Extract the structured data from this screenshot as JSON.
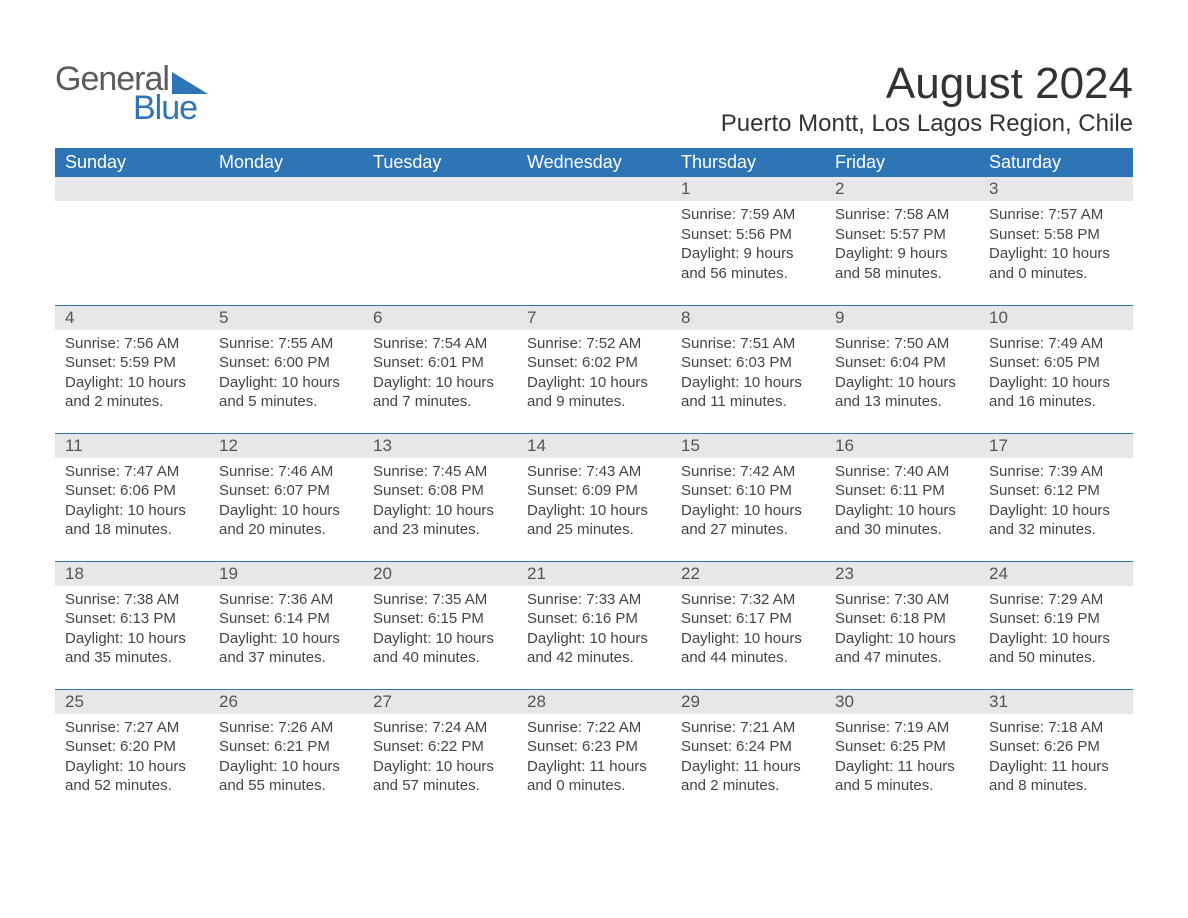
{
  "brand": {
    "word1": "General",
    "word2": "Blue",
    "tri_color": "#2e75b6"
  },
  "header": {
    "title": "August 2024",
    "location": "Puerto Montt, Los Lagos Region, Chile"
  },
  "colors": {
    "header_bg": "#2e75b6",
    "header_text": "#ffffff",
    "daynum_bg": "#e7e7e7",
    "daynum_text": "#555555",
    "body_text": "#444444",
    "rule": "#2e75b6",
    "page_bg": "#ffffff"
  },
  "weekdays": [
    "Sunday",
    "Monday",
    "Tuesday",
    "Wednesday",
    "Thursday",
    "Friday",
    "Saturday"
  ],
  "weeks": [
    [
      null,
      null,
      null,
      null,
      {
        "day": "1",
        "sunrise": "7:59 AM",
        "sunset": "5:56 PM",
        "daylight": "9 hours and 56 minutes."
      },
      {
        "day": "2",
        "sunrise": "7:58 AM",
        "sunset": "5:57 PM",
        "daylight": "9 hours and 58 minutes."
      },
      {
        "day": "3",
        "sunrise": "7:57 AM",
        "sunset": "5:58 PM",
        "daylight": "10 hours and 0 minutes."
      }
    ],
    [
      {
        "day": "4",
        "sunrise": "7:56 AM",
        "sunset": "5:59 PM",
        "daylight": "10 hours and 2 minutes."
      },
      {
        "day": "5",
        "sunrise": "7:55 AM",
        "sunset": "6:00 PM",
        "daylight": "10 hours and 5 minutes."
      },
      {
        "day": "6",
        "sunrise": "7:54 AM",
        "sunset": "6:01 PM",
        "daylight": "10 hours and 7 minutes."
      },
      {
        "day": "7",
        "sunrise": "7:52 AM",
        "sunset": "6:02 PM",
        "daylight": "10 hours and 9 minutes."
      },
      {
        "day": "8",
        "sunrise": "7:51 AM",
        "sunset": "6:03 PM",
        "daylight": "10 hours and 11 minutes."
      },
      {
        "day": "9",
        "sunrise": "7:50 AM",
        "sunset": "6:04 PM",
        "daylight": "10 hours and 13 minutes."
      },
      {
        "day": "10",
        "sunrise": "7:49 AM",
        "sunset": "6:05 PM",
        "daylight": "10 hours and 16 minutes."
      }
    ],
    [
      {
        "day": "11",
        "sunrise": "7:47 AM",
        "sunset": "6:06 PM",
        "daylight": "10 hours and 18 minutes."
      },
      {
        "day": "12",
        "sunrise": "7:46 AM",
        "sunset": "6:07 PM",
        "daylight": "10 hours and 20 minutes."
      },
      {
        "day": "13",
        "sunrise": "7:45 AM",
        "sunset": "6:08 PM",
        "daylight": "10 hours and 23 minutes."
      },
      {
        "day": "14",
        "sunrise": "7:43 AM",
        "sunset": "6:09 PM",
        "daylight": "10 hours and 25 minutes."
      },
      {
        "day": "15",
        "sunrise": "7:42 AM",
        "sunset": "6:10 PM",
        "daylight": "10 hours and 27 minutes."
      },
      {
        "day": "16",
        "sunrise": "7:40 AM",
        "sunset": "6:11 PM",
        "daylight": "10 hours and 30 minutes."
      },
      {
        "day": "17",
        "sunrise": "7:39 AM",
        "sunset": "6:12 PM",
        "daylight": "10 hours and 32 minutes."
      }
    ],
    [
      {
        "day": "18",
        "sunrise": "7:38 AM",
        "sunset": "6:13 PM",
        "daylight": "10 hours and 35 minutes."
      },
      {
        "day": "19",
        "sunrise": "7:36 AM",
        "sunset": "6:14 PM",
        "daylight": "10 hours and 37 minutes."
      },
      {
        "day": "20",
        "sunrise": "7:35 AM",
        "sunset": "6:15 PM",
        "daylight": "10 hours and 40 minutes."
      },
      {
        "day": "21",
        "sunrise": "7:33 AM",
        "sunset": "6:16 PM",
        "daylight": "10 hours and 42 minutes."
      },
      {
        "day": "22",
        "sunrise": "7:32 AM",
        "sunset": "6:17 PM",
        "daylight": "10 hours and 44 minutes."
      },
      {
        "day": "23",
        "sunrise": "7:30 AM",
        "sunset": "6:18 PM",
        "daylight": "10 hours and 47 minutes."
      },
      {
        "day": "24",
        "sunrise": "7:29 AM",
        "sunset": "6:19 PM",
        "daylight": "10 hours and 50 minutes."
      }
    ],
    [
      {
        "day": "25",
        "sunrise": "7:27 AM",
        "sunset": "6:20 PM",
        "daylight": "10 hours and 52 minutes."
      },
      {
        "day": "26",
        "sunrise": "7:26 AM",
        "sunset": "6:21 PM",
        "daylight": "10 hours and 55 minutes."
      },
      {
        "day": "27",
        "sunrise": "7:24 AM",
        "sunset": "6:22 PM",
        "daylight": "10 hours and 57 minutes."
      },
      {
        "day": "28",
        "sunrise": "7:22 AM",
        "sunset": "6:23 PM",
        "daylight": "11 hours and 0 minutes."
      },
      {
        "day": "29",
        "sunrise": "7:21 AM",
        "sunset": "6:24 PM",
        "daylight": "11 hours and 2 minutes."
      },
      {
        "day": "30",
        "sunrise": "7:19 AM",
        "sunset": "6:25 PM",
        "daylight": "11 hours and 5 minutes."
      },
      {
        "day": "31",
        "sunrise": "7:18 AM",
        "sunset": "6:26 PM",
        "daylight": "11 hours and 8 minutes."
      }
    ]
  ],
  "labels": {
    "sunrise": "Sunrise:",
    "sunset": "Sunset:",
    "daylight": "Daylight:"
  }
}
